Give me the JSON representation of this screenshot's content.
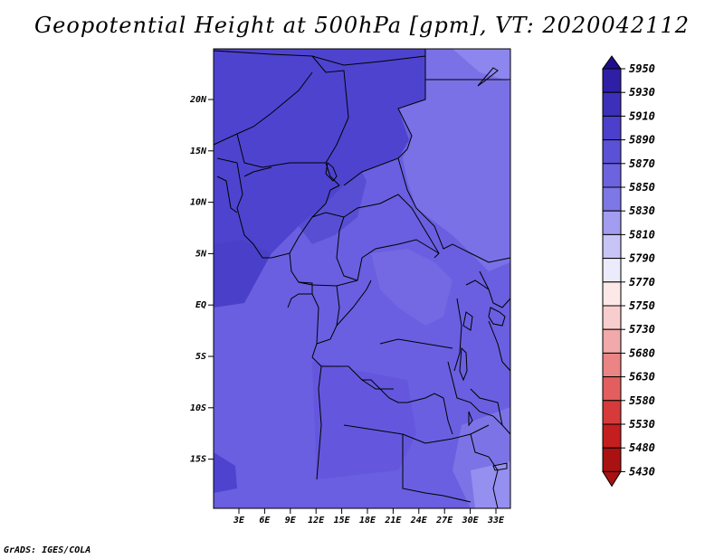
{
  "title": "Geopotential Height at 500hPa [gpm], VT: 2020042112",
  "footer": "GrADS: IGES/COLA",
  "map": {
    "lat_labels": [
      "20N",
      "15N",
      "10N",
      "5N",
      "EQ",
      "5S",
      "10S",
      "15S"
    ],
    "lon_labels": [
      "3E",
      "6E",
      "9E",
      "12E",
      "15E",
      "18E",
      "21E",
      "24E",
      "27E",
      "30E",
      "33E"
    ],
    "fill_levels": {
      "5870": "#6a5fe0",
      "5880": "#5b4fd6",
      "5890": "#4b3fcb",
      "5860": "#7b73e6",
      "5850": "#8a84ec"
    }
  },
  "colorbar": {
    "labels": [
      "5950",
      "5930",
      "5910",
      "5890",
      "5870",
      "5850",
      "5830",
      "5810",
      "5790",
      "5770",
      "5750",
      "5730",
      "5680",
      "5630",
      "5580",
      "5530",
      "5480",
      "5430"
    ],
    "colors": [
      "#1e0e8c",
      "#2e1fa6",
      "#3c30bb",
      "#4b3fcb",
      "#5b51d6",
      "#6c63df",
      "#7e77e6",
      "#a29df0",
      "#c8c5f6",
      "#ecebfc",
      "#fde8e8",
      "#f8cdcd",
      "#f2a9a9",
      "#eb8484",
      "#e35e5e",
      "#d63a3a",
      "#c41e1e",
      "#aa1111"
    ]
  }
}
